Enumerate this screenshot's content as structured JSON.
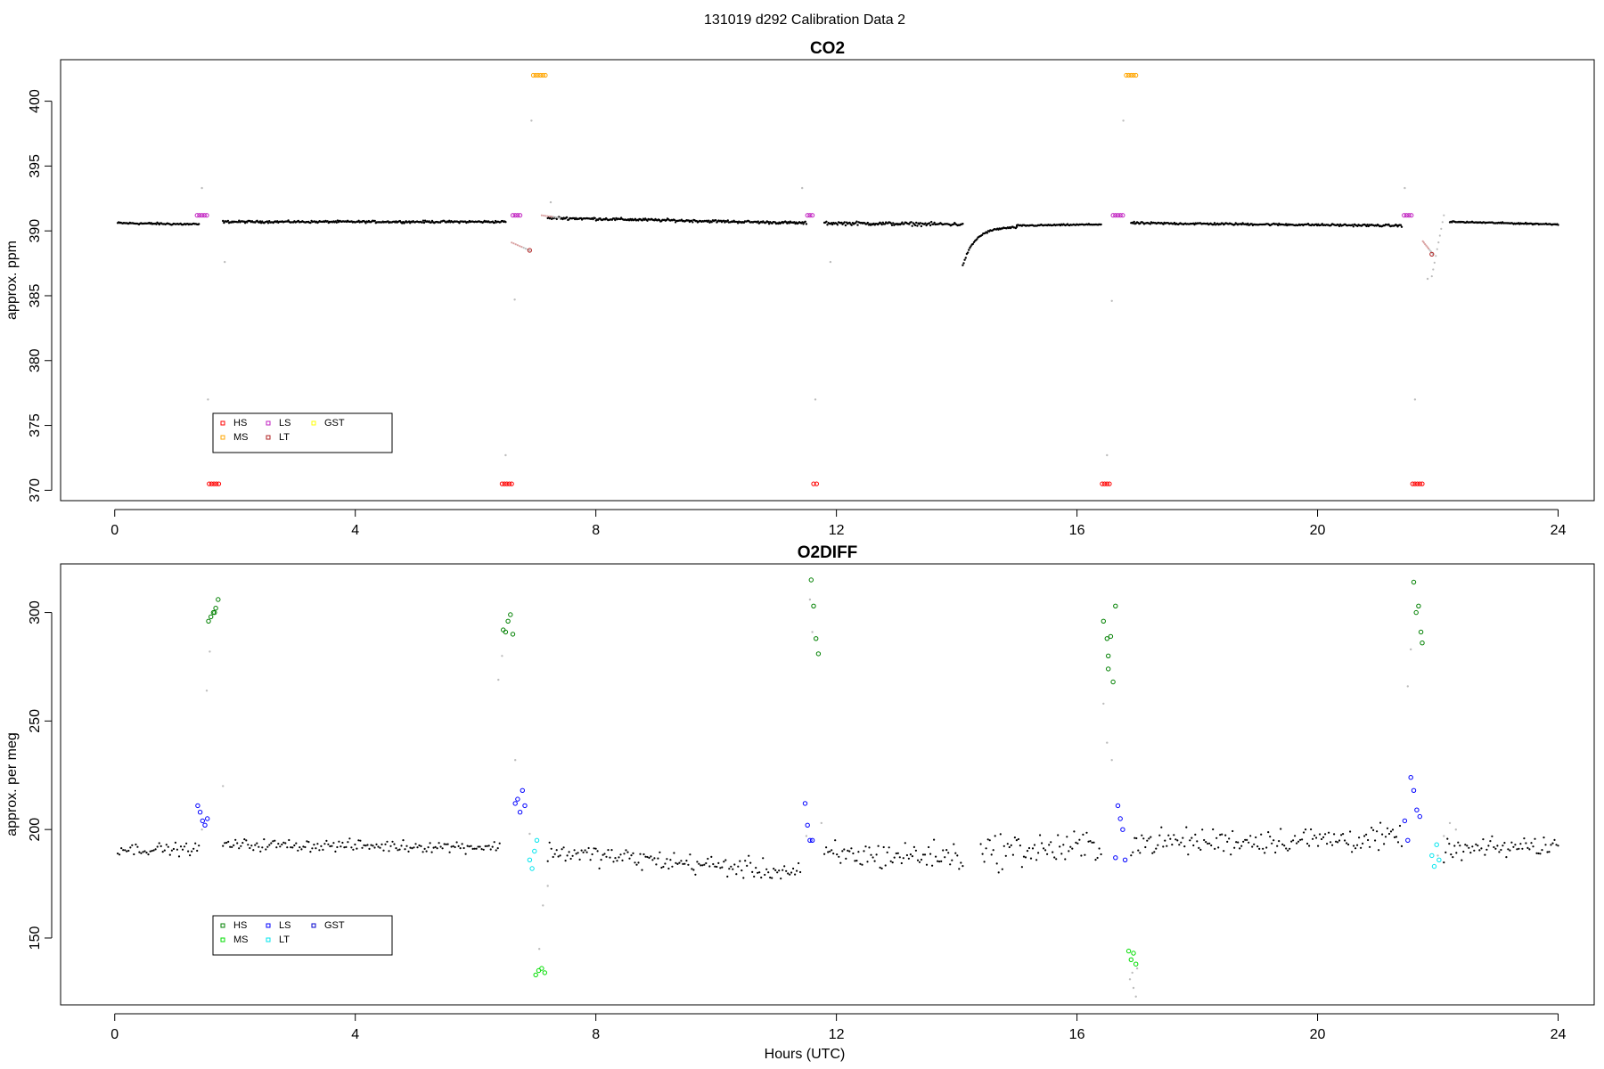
{
  "figure": {
    "title": "131019   d292   Calibration Data 2",
    "xlabel": "Hours (UTC)"
  },
  "colors": {
    "ambient": "#000000",
    "flush": "#bdbdbd",
    "LT_trend": "#d9a0a0"
  },
  "chart_data": [
    {
      "type": "scatter",
      "title": "CO2",
      "ylabel": "approx. ppm",
      "xlim": [
        -0.9,
        24.6
      ],
      "ylim": [
        369.2,
        403.2
      ],
      "xticks": [
        0,
        4,
        8,
        12,
        16,
        20,
        24
      ],
      "yticks": [
        370,
        375,
        380,
        385,
        390,
        395,
        400
      ],
      "legend": {
        "position": "bottom-left",
        "entries": [
          {
            "name": "HS",
            "color": "#ff0000"
          },
          {
            "name": "MS",
            "color": "#ffa500"
          },
          {
            "name": "LS",
            "color": "#c020c0"
          },
          {
            "name": "LT",
            "color": "#b22222"
          },
          {
            "name": "GST",
            "color": "#ffff00"
          }
        ]
      },
      "ambient_segments": [
        {
          "x0": 0.05,
          "x1": 1.4,
          "y0": 390.6,
          "y1": 390.5,
          "noise": 0.12
        },
        {
          "x0": 1.8,
          "x1": 6.5,
          "y0": 390.7,
          "y1": 390.7,
          "noise": 0.12
        },
        {
          "x0": 7.2,
          "x1": 11.5,
          "y0": 391.0,
          "y1": 390.6,
          "noise": 0.15
        },
        {
          "x0": 11.8,
          "x1": 14.1,
          "y0": 390.6,
          "y1": 390.5,
          "noise": 0.2
        },
        {
          "x0": 14.1,
          "x1": 15.0,
          "y0": 387.3,
          "y1": 390.3,
          "noise": 0.1
        },
        {
          "x0": 15.0,
          "x1": 16.4,
          "y0": 390.4,
          "y1": 390.5,
          "noise": 0.08
        },
        {
          "x0": 16.9,
          "x1": 21.4,
          "y0": 390.6,
          "y1": 390.4,
          "noise": 0.12
        },
        {
          "x0": 22.2,
          "x1": 24.0,
          "y0": 390.7,
          "y1": 390.5,
          "noise": 0.08
        }
      ],
      "calibration_series": [
        {
          "name": "HS",
          "color": "#ff0000",
          "points": [
            [
              1.57,
              370.5
            ],
            [
              1.61,
              370.5
            ],
            [
              1.65,
              370.5
            ],
            [
              1.69,
              370.5
            ],
            [
              1.73,
              370.5
            ],
            [
              6.44,
              370.5
            ],
            [
              6.48,
              370.5
            ],
            [
              6.52,
              370.5
            ],
            [
              6.56,
              370.5
            ],
            [
              6.6,
              370.5
            ],
            [
              11.62,
              370.5
            ],
            [
              11.67,
              370.5
            ],
            [
              16.42,
              370.5
            ],
            [
              16.46,
              370.5
            ],
            [
              16.5,
              370.5
            ],
            [
              16.54,
              370.5
            ],
            [
              21.58,
              370.5
            ],
            [
              21.62,
              370.5
            ],
            [
              21.66,
              370.5
            ],
            [
              21.7,
              370.5
            ],
            [
              21.74,
              370.5
            ]
          ]
        },
        {
          "name": "LS",
          "color": "#c020c0",
          "points": [
            [
              1.37,
              391.2
            ],
            [
              1.41,
              391.2
            ],
            [
              1.45,
              391.2
            ],
            [
              1.49,
              391.2
            ],
            [
              1.53,
              391.2
            ],
            [
              6.62,
              391.2
            ],
            [
              6.66,
              391.2
            ],
            [
              6.7,
              391.2
            ],
            [
              6.74,
              391.2
            ],
            [
              11.52,
              391.2
            ],
            [
              11.56,
              391.2
            ],
            [
              11.6,
              391.2
            ],
            [
              16.6,
              391.2
            ],
            [
              16.64,
              391.2
            ],
            [
              16.68,
              391.2
            ],
            [
              16.72,
              391.2
            ],
            [
              16.76,
              391.2
            ],
            [
              21.44,
              391.2
            ],
            [
              21.48,
              391.2
            ],
            [
              21.52,
              391.2
            ],
            [
              21.56,
              391.2
            ]
          ]
        },
        {
          "name": "MS",
          "color": "#ffa500",
          "points": [
            [
              6.96,
              402.0
            ],
            [
              7.0,
              402.0
            ],
            [
              7.04,
              402.0
            ],
            [
              7.08,
              402.0
            ],
            [
              7.12,
              402.0
            ],
            [
              7.16,
              402.0
            ],
            [
              16.82,
              402.0
            ],
            [
              16.86,
              402.0
            ],
            [
              16.9,
              402.0
            ],
            [
              16.94,
              402.0
            ],
            [
              16.98,
              402.0
            ]
          ]
        },
        {
          "name": "LT",
          "color": "#b22222",
          "points": [
            [
              6.9,
              388.5
            ],
            [
              21.9,
              388.2
            ]
          ]
        }
      ],
      "flush_points": [
        [
          1.45,
          393.3
        ],
        [
          1.55,
          377.0
        ],
        [
          1.83,
          387.6
        ],
        [
          6.5,
          372.7
        ],
        [
          6.65,
          384.7
        ],
        [
          6.93,
          398.5
        ],
        [
          7.25,
          392.2
        ],
        [
          11.43,
          393.3
        ],
        [
          11.65,
          377.0
        ],
        [
          11.9,
          387.6
        ],
        [
          16.5,
          372.7
        ],
        [
          16.58,
          384.6
        ],
        [
          16.77,
          398.5
        ],
        [
          21.45,
          393.3
        ],
        [
          21.62,
          377.0
        ],
        [
          21.83,
          386.3
        ]
      ],
      "flush_trails": [
        {
          "x0": 6.6,
          "x1": 6.9,
          "y0": 389.1,
          "y1": 388.5
        },
        {
          "x0": 7.1,
          "x1": 7.4,
          "y0": 391.2,
          "y1": 391.0
        },
        {
          "x0": 21.75,
          "x1": 21.92,
          "y0": 389.2,
          "y1": 388.2
        },
        {
          "x0": 21.9,
          "x1": 22.1,
          "y0": 386.5,
          "y1": 391.2
        }
      ]
    },
    {
      "type": "scatter",
      "title": "O2DIFF",
      "ylabel": "approx. per meg",
      "xlim": [
        -0.9,
        24.6
      ],
      "ylim": [
        119.2,
        322.4
      ],
      "xticks": [
        0,
        4,
        8,
        12,
        16,
        20,
        24
      ],
      "yticks": [
        150,
        200,
        250,
        300
      ],
      "legend": {
        "position": "bottom-left",
        "entries": [
          {
            "name": "HS",
            "color": "#008000"
          },
          {
            "name": "MS",
            "color": "#00dd00"
          },
          {
            "name": "LS",
            "color": "#0000ff"
          },
          {
            "name": "LT",
            "color": "#00e5ee"
          },
          {
            "name": "GST",
            "color": "#0000cc"
          }
        ]
      },
      "ambient_segments": [
        {
          "x0": 0.05,
          "x1": 1.4,
          "y0": 191,
          "y1": 191,
          "noise": 4
        },
        {
          "x0": 1.8,
          "x1": 6.4,
          "y0": 193,
          "y1": 192,
          "noise": 4
        },
        {
          "x0": 7.2,
          "x1": 11.4,
          "y0": 190,
          "y1": 180,
          "noise": 7
        },
        {
          "x0": 11.8,
          "x1": 14.1,
          "y0": 188,
          "y1": 188,
          "noise": 10
        },
        {
          "x0": 14.4,
          "x1": 16.4,
          "y0": 190,
          "y1": 192,
          "noise": 12
        },
        {
          "x0": 16.9,
          "x1": 21.4,
          "y0": 194,
          "y1": 196,
          "noise": 9
        },
        {
          "x0": 22.1,
          "x1": 24.0,
          "y0": 190,
          "y1": 193,
          "noise": 7
        }
      ],
      "calibration_series": [
        {
          "name": "HS",
          "color": "#008000",
          "points": [
            [
              1.56,
              296
            ],
            [
              1.6,
              298
            ],
            [
              1.64,
              300
            ],
            [
              1.68,
              302
            ],
            [
              1.72,
              306
            ],
            [
              1.66,
              300
            ],
            [
              6.46,
              292
            ],
            [
              6.5,
              291
            ],
            [
              6.54,
              296
            ],
            [
              6.58,
              299
            ],
            [
              6.62,
              290
            ],
            [
              11.58,
              315
            ],
            [
              11.62,
              303
            ],
            [
              11.66,
              288
            ],
            [
              11.7,
              281
            ],
            [
              16.44,
              296
            ],
            [
              16.5,
              288
            ],
            [
              16.52,
              280
            ],
            [
              16.56,
              289
            ],
            [
              16.6,
              268
            ],
            [
              16.64,
              303
            ],
            [
              16.52,
              274
            ],
            [
              21.6,
              314
            ],
            [
              21.64,
              300
            ],
            [
              21.68,
              303
            ],
            [
              21.72,
              291
            ],
            [
              21.74,
              286
            ]
          ]
        },
        {
          "name": "MS",
          "color": "#00dd00",
          "points": [
            [
              7.0,
              133
            ],
            [
              7.05,
              135
            ],
            [
              7.1,
              136
            ],
            [
              7.15,
              134
            ],
            [
              16.86,
              144
            ],
            [
              16.9,
              140
            ],
            [
              16.94,
              143
            ],
            [
              16.98,
              138
            ]
          ]
        },
        {
          "name": "LS",
          "color": "#0000ff",
          "points": [
            [
              1.38,
              211
            ],
            [
              1.42,
              208
            ],
            [
              1.46,
              204
            ],
            [
              1.5,
              202
            ],
            [
              1.54,
              205
            ],
            [
              6.66,
              212
            ],
            [
              6.7,
              214
            ],
            [
              6.74,
              208
            ],
            [
              6.78,
              218
            ],
            [
              6.82,
              211
            ],
            [
              11.48,
              212
            ],
            [
              11.52,
              202
            ],
            [
              11.56,
              195
            ],
            [
              11.6,
              195
            ],
            [
              16.64,
              187
            ],
            [
              16.68,
              211
            ],
            [
              16.72,
              205
            ],
            [
              16.76,
              200
            ],
            [
              16.8,
              186
            ],
            [
              21.45,
              204
            ],
            [
              21.5,
              195
            ],
            [
              21.55,
              224
            ],
            [
              21.6,
              218
            ],
            [
              21.65,
              209
            ],
            [
              21.7,
              206
            ]
          ]
        },
        {
          "name": "LT",
          "color": "#00e5ee",
          "points": [
            [
              6.9,
              186
            ],
            [
              6.94,
              182
            ],
            [
              6.98,
              190
            ],
            [
              7.02,
              195
            ],
            [
              21.9,
              188
            ],
            [
              21.94,
              183
            ],
            [
              21.98,
              193
            ],
            [
              22.02,
              186
            ]
          ]
        }
      ],
      "flush_points": [
        [
          1.45,
          200
        ],
        [
          1.53,
          264
        ],
        [
          1.58,
          282
        ],
        [
          1.8,
          220
        ],
        [
          6.38,
          269
        ],
        [
          6.44,
          280
        ],
        [
          6.66,
          232
        ],
        [
          6.9,
          198
        ],
        [
          7.06,
          145
        ],
        [
          7.12,
          165
        ],
        [
          7.2,
          174
        ],
        [
          11.5,
          197
        ],
        [
          11.56,
          306
        ],
        [
          11.6,
          291
        ],
        [
          11.75,
          203
        ],
        [
          16.44,
          258
        ],
        [
          16.5,
          240
        ],
        [
          16.58,
          232
        ],
        [
          16.94,
          127
        ],
        [
          16.88,
          131
        ],
        [
          16.92,
          134
        ],
        [
          17.0,
          136
        ],
        [
          16.98,
          123
        ],
        [
          21.5,
          266
        ],
        [
          21.55,
          283
        ],
        [
          22.0,
          188
        ],
        [
          22.1,
          197
        ],
        [
          22.2,
          203
        ],
        [
          22.3,
          200
        ]
      ]
    }
  ]
}
